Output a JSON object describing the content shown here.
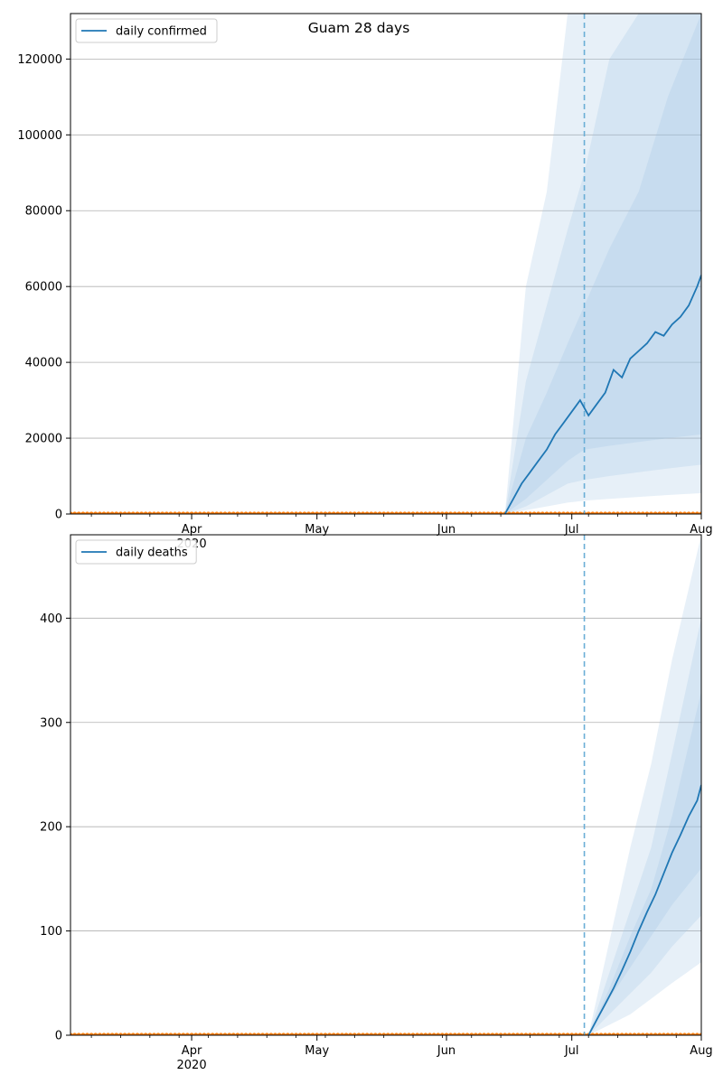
{
  "figure": {
    "title": "Guam 28 days"
  },
  "colors": {
    "series": "#1f77b4",
    "band": "#9fc3e2",
    "observed": "#ff7f0e",
    "grid": "#b0b0b0",
    "forecast_start_line": "#6aaed6"
  },
  "chart_data": [
    {
      "type": "line",
      "title": "Guam 28 days",
      "legend": {
        "labels": [
          "daily confirmed"
        ],
        "placement": "top-left"
      },
      "grid": "horizontal",
      "x_range": [
        "2020-03-03",
        "2020-08-01"
      ],
      "ylim": [
        0,
        132000
      ],
      "x_tick_labels": [
        {
          "date": "2020-04-01",
          "label": "Apr",
          "sublabel": "2020"
        },
        {
          "date": "2020-05-01",
          "label": "May"
        },
        {
          "date": "2020-06-01",
          "label": "Jun"
        },
        {
          "date": "2020-07-01",
          "label": "Jul"
        },
        {
          "date": "2020-08-01",
          "label": "Aug"
        }
      ],
      "y_ticks": [
        0,
        20000,
        40000,
        60000,
        80000,
        100000,
        120000
      ],
      "forecast_start": "2020-07-04",
      "series": [
        {
          "name": "daily confirmed",
          "x": [
            "2020-06-15",
            "2020-06-17",
            "2020-06-19",
            "2020-06-21",
            "2020-06-23",
            "2020-06-25",
            "2020-06-27",
            "2020-06-29",
            "2020-07-01",
            "2020-07-03",
            "2020-07-05",
            "2020-07-07",
            "2020-07-09",
            "2020-07-11",
            "2020-07-13",
            "2020-07-15",
            "2020-07-17",
            "2020-07-19",
            "2020-07-21",
            "2020-07-23",
            "2020-07-25",
            "2020-07-27",
            "2020-07-29",
            "2020-07-31",
            "2020-08-01"
          ],
          "y": [
            0,
            4000,
            8000,
            11000,
            14000,
            17000,
            21000,
            24000,
            27000,
            30000,
            26000,
            29000,
            32000,
            38000,
            36000,
            41000,
            43000,
            45000,
            48000,
            47000,
            50000,
            52000,
            55000,
            60000,
            63000
          ]
        }
      ],
      "intervals": [
        {
          "x": [
            "2020-06-15",
            "2020-06-20",
            "2020-06-25",
            "2020-06-30",
            "2020-07-04",
            "2020-07-10",
            "2020-07-17",
            "2020-07-24",
            "2020-08-01"
          ],
          "lower": [
            0,
            1000,
            2000,
            3000,
            3500,
            4000,
            4500,
            5000,
            5500
          ],
          "upper": [
            0,
            60000,
            85000,
            132000,
            132000,
            132000,
            132000,
            132000,
            132000
          ]
        },
        {
          "x": [
            "2020-06-15",
            "2020-06-20",
            "2020-06-25",
            "2020-06-30",
            "2020-07-04",
            "2020-07-10",
            "2020-07-17",
            "2020-07-24",
            "2020-08-01"
          ],
          "lower": [
            0,
            2000,
            5000,
            8000,
            9000,
            10000,
            11000,
            12000,
            13000
          ],
          "upper": [
            0,
            35000,
            55000,
            75000,
            90000,
            120000,
            132000,
            132000,
            132000
          ]
        },
        {
          "x": [
            "2020-06-15",
            "2020-06-20",
            "2020-06-25",
            "2020-06-30",
            "2020-07-04",
            "2020-07-10",
            "2020-07-17",
            "2020-07-24",
            "2020-08-01"
          ],
          "lower": [
            0,
            4000,
            9000,
            14000,
            17000,
            18000,
            19000,
            20000,
            21000
          ],
          "upper": [
            0,
            20000,
            32000,
            45000,
            55000,
            70000,
            85000,
            110000,
            132000
          ]
        }
      ],
      "observed": {
        "x_start": "2020-03-03",
        "x_end": "2020-08-01",
        "value": 0
      }
    },
    {
      "type": "line",
      "legend": {
        "labels": [
          "daily deaths"
        ],
        "placement": "top-left"
      },
      "grid": "horizontal",
      "x_range": [
        "2020-03-03",
        "2020-08-01"
      ],
      "ylim": [
        0,
        480
      ],
      "x_tick_labels": [
        {
          "date": "2020-04-01",
          "label": "Apr",
          "sublabel": "2020"
        },
        {
          "date": "2020-05-01",
          "label": "May"
        },
        {
          "date": "2020-06-01",
          "label": "Jun"
        },
        {
          "date": "2020-07-01",
          "label": "Jul"
        },
        {
          "date": "2020-08-01",
          "label": "Aug"
        }
      ],
      "y_ticks": [
        0,
        100,
        200,
        300,
        400
      ],
      "forecast_start": "2020-07-04",
      "series": [
        {
          "name": "daily deaths",
          "x": [
            "2020-07-05",
            "2020-07-07",
            "2020-07-09",
            "2020-07-11",
            "2020-07-13",
            "2020-07-15",
            "2020-07-17",
            "2020-07-19",
            "2020-07-21",
            "2020-07-23",
            "2020-07-25",
            "2020-07-27",
            "2020-07-29",
            "2020-07-31",
            "2020-08-01"
          ],
          "y": [
            0,
            15,
            30,
            45,
            62,
            80,
            100,
            118,
            135,
            155,
            175,
            192,
            210,
            225,
            240
          ]
        }
      ],
      "intervals": [
        {
          "x": [
            "2020-07-05",
            "2020-07-10",
            "2020-07-15",
            "2020-07-20",
            "2020-07-25",
            "2020-08-01"
          ],
          "lower": [
            0,
            10,
            20,
            35,
            50,
            70
          ],
          "upper": [
            0,
            90,
            180,
            260,
            360,
            480
          ]
        },
        {
          "x": [
            "2020-07-05",
            "2020-07-10",
            "2020-07-15",
            "2020-07-20",
            "2020-07-25",
            "2020-08-01"
          ],
          "lower": [
            0,
            20,
            40,
            60,
            85,
            115
          ],
          "upper": [
            0,
            60,
            120,
            180,
            270,
            400
          ]
        },
        {
          "x": [
            "2020-07-05",
            "2020-07-10",
            "2020-07-15",
            "2020-07-20",
            "2020-07-25",
            "2020-08-01"
          ],
          "lower": [
            0,
            35,
            65,
            95,
            125,
            160
          ],
          "upper": [
            0,
            45,
            95,
            140,
            210,
            330
          ]
        }
      ],
      "observed": {
        "x_start": "2020-03-03",
        "x_end": "2020-08-01",
        "value": 0
      }
    }
  ]
}
